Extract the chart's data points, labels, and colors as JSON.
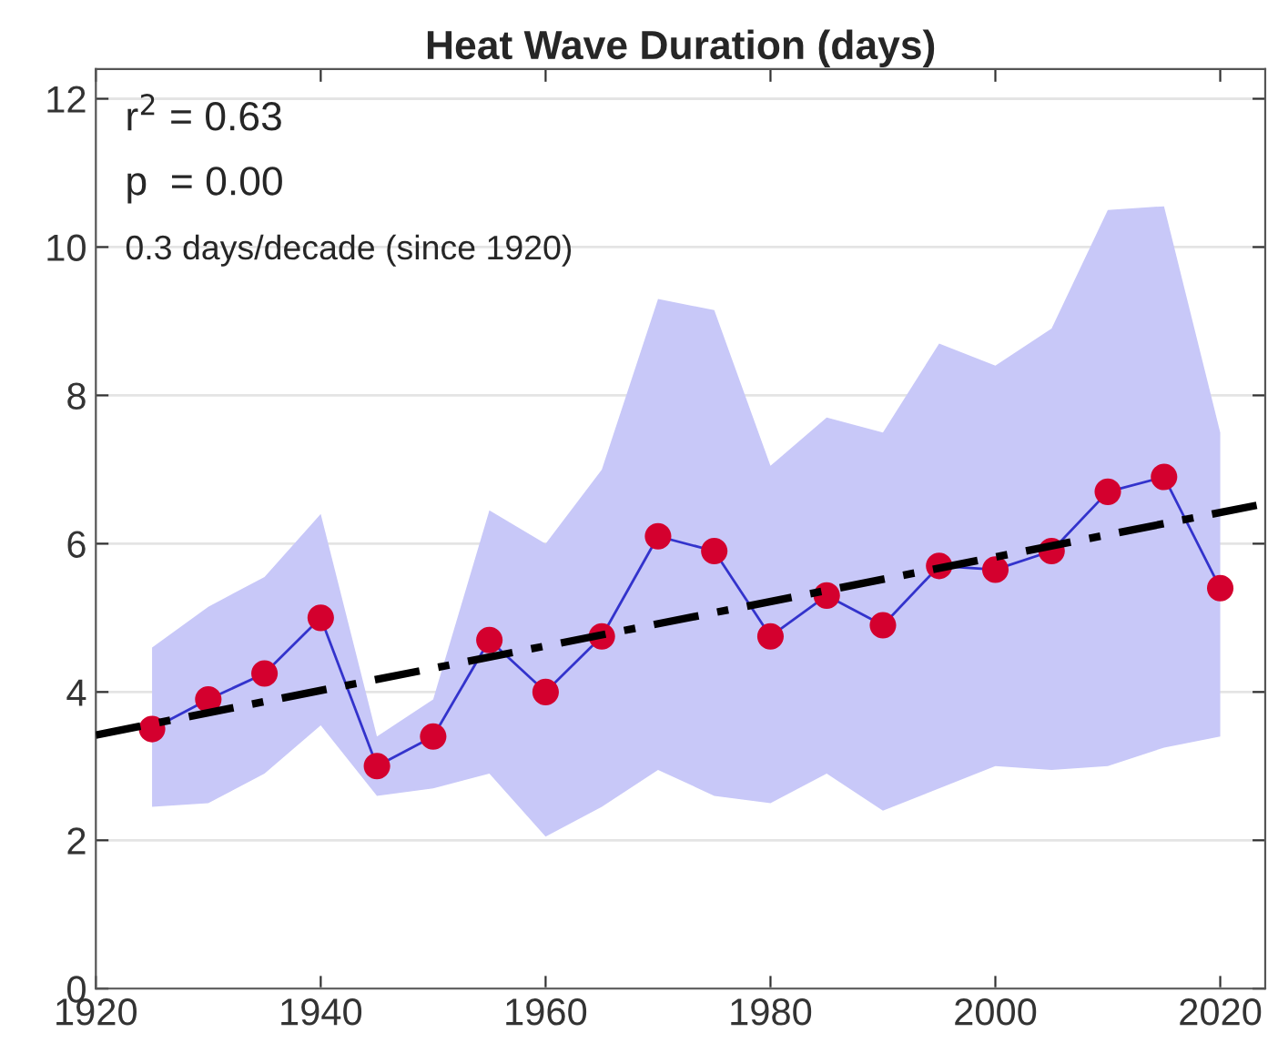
{
  "chart_data": {
    "type": "line",
    "title": "Heat Wave Duration (days)",
    "annotations": [
      "r$^{2}$ = 0.63",
      "p  = 0.00",
      "0.3 days/decade (since 1920)"
    ],
    "x": [
      1925,
      1930,
      1935,
      1940,
      1945,
      1950,
      1955,
      1960,
      1965,
      1970,
      1975,
      1980,
      1985,
      1990,
      1995,
      2000,
      2005,
      2010,
      2015,
      2020
    ],
    "series": [
      {
        "color": "#3333cc",
        "marker": "circle",
        "colors": [
          "#d4002e",
          "#d4002e",
          "#d4002e",
          "#d4002e",
          "#d4002e",
          "#d4002e",
          "#d4002e",
          "#d4002e",
          "#d4002e",
          "#d4002e",
          "#d4002e",
          "#d4002e",
          "#d4002e",
          "#d4002e",
          "#d4002e",
          "#d4002e",
          "#d4002e",
          "#d4002e",
          "#d4002e",
          "#d4002e"
        ],
        "values": [
          3.5,
          3.9,
          4.25,
          5.0,
          3.0,
          3.4,
          4.7,
          4.0,
          4.75,
          6.1,
          5.9,
          4.75,
          5.3,
          4.9,
          5.7,
          5.65,
          5.9,
          6.7,
          6.9,
          5.4
        ],
        "lower": [
          2.45,
          2.5,
          2.9,
          3.55,
          2.6,
          2.7,
          2.9,
          2.05,
          2.45,
          2.95,
          2.6,
          2.5,
          2.9,
          2.4,
          2.7,
          3.0,
          2.95,
          3.0,
          3.25,
          3.4
        ],
        "upper": [
          4.6,
          5.15,
          5.55,
          6.4,
          3.4,
          3.9,
          6.45,
          6.0,
          7.0,
          9.3,
          9.15,
          7.05,
          7.7,
          7.5,
          8.7,
          8.4,
          8.9,
          10.5,
          10.55,
          7.5
        ]
      },
      {
        "color": "#000000",
        "line_style": "dashed",
        "x": [
          1920,
          2024
        ],
        "values": [
          3.42,
          6.54
        ]
      }
    ],
    "xlim": [
      1920,
      2024
    ],
    "ylim": [
      0,
      12.4
    ],
    "xticks": [
      1920,
      1940,
      1960,
      1980,
      2000,
      2020
    ],
    "yticks": [
      0,
      2,
      4,
      6,
      8,
      10,
      12
    ],
    "grid": "y",
    "legend": false
  }
}
